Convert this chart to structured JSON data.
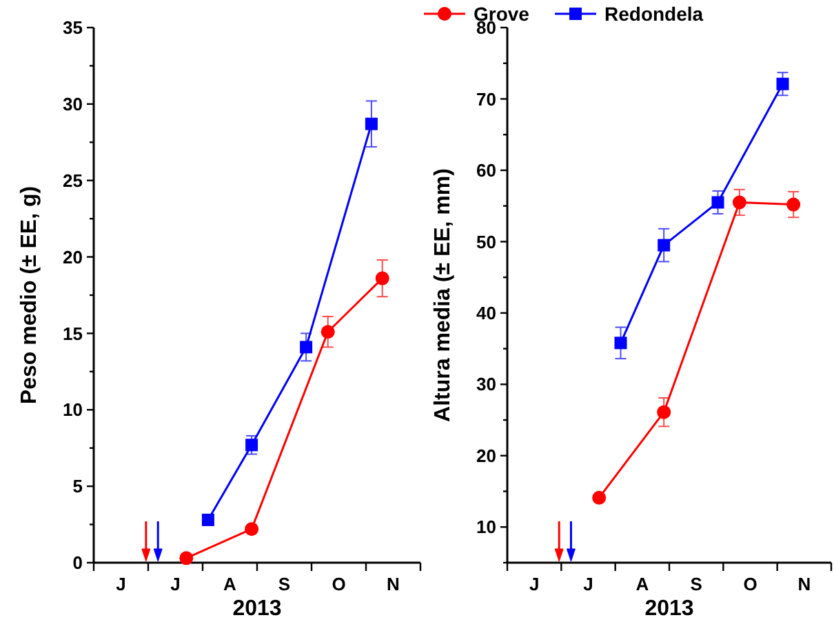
{
  "chart_data": [
    {
      "type": "line",
      "xlabel": "2013",
      "ylabel": "Peso medio (± EE, g)",
      "legend": "top",
      "categories": [
        null,
        null,
        "J",
        null,
        null,
        null,
        null,
        "J",
        null,
        null,
        null,
        null,
        "A",
        null,
        null,
        null,
        null,
        "S",
        null,
        null,
        null,
        null,
        "O",
        null,
        null,
        null,
        null,
        "N",
        null,
        null
      ],
      "ylim": [
        0,
        35
      ],
      "yticks": [
        0,
        {
          "value": 2.5,
          "label": null
        },
        5,
        {
          "value": 7.5,
          "label": null
        },
        10,
        {
          "value": 12.5,
          "label": null
        },
        15,
        {
          "value": 17.5,
          "label": null
        },
        20,
        {
          "value": 22.5,
          "label": null
        },
        25,
        {
          "value": 27.5,
          "label": null
        },
        30,
        {
          "value": 32.5,
          "label": null
        },
        35
      ],
      "series": [
        {
          "name": "Grove",
          "color": "#ff0000",
          "marker": "circle",
          "values": [
            null,
            null,
            null,
            null,
            null,
            null,
            null,
            null,
            0.3,
            null,
            null,
            null,
            null,
            null,
            2.2,
            null,
            null,
            null,
            null,
            null,
            null,
            15.1,
            null,
            null,
            null,
            null,
            18.6,
            null,
            null,
            null
          ],
          "errors": [
            null,
            null,
            null,
            null,
            null,
            null,
            null,
            null,
            null,
            null,
            null,
            null,
            null,
            null,
            null,
            null,
            null,
            null,
            null,
            null,
            null,
            1.0,
            null,
            null,
            null,
            null,
            1.2,
            null,
            null,
            null
          ]
        },
        {
          "name": "Redondela",
          "color": "#0000ff",
          "marker": "square",
          "values": [
            null,
            null,
            null,
            null,
            null,
            null,
            null,
            null,
            null,
            null,
            2.8,
            null,
            null,
            null,
            7.7,
            null,
            null,
            null,
            null,
            14.1,
            null,
            null,
            null,
            null,
            null,
            28.7,
            null,
            null,
            null,
            null
          ],
          "errors": [
            null,
            null,
            null,
            null,
            null,
            null,
            null,
            null,
            null,
            null,
            null,
            null,
            null,
            null,
            0.6,
            null,
            null,
            null,
            null,
            0.9,
            null,
            null,
            null,
            null,
            null,
            1.5,
            null,
            null,
            null,
            null
          ]
        }
      ]
    },
    {
      "type": "line",
      "xlabel": "2013",
      "ylabel": "Altura media (± EE, mm)",
      "categories": [
        null,
        null,
        "J",
        null,
        null,
        null,
        null,
        "J",
        null,
        null,
        null,
        null,
        "A",
        null,
        null,
        null,
        null,
        "S",
        null,
        null,
        null,
        null,
        "O",
        null,
        null,
        null,
        null,
        "N",
        null,
        null
      ],
      "ylim": [
        5,
        80
      ],
      "yticks": [
        {
          "value": 5,
          "label": null
        },
        10,
        {
          "value": 15,
          "label": null
        },
        20,
        {
          "value": 25,
          "label": null
        },
        30,
        {
          "value": 35,
          "label": null
        },
        40,
        {
          "value": 45,
          "label": null
        },
        50,
        {
          "value": 55,
          "label": null
        },
        60,
        {
          "value": 65,
          "label": null
        },
        70,
        {
          "value": 75,
          "label": null
        },
        80
      ],
      "series": [
        {
          "color": "#ff0000",
          "marker": "circle",
          "values": [
            null,
            null,
            null,
            null,
            null,
            null,
            null,
            null,
            14.1,
            null,
            null,
            null,
            null,
            null,
            26.1,
            null,
            null,
            null,
            null,
            null,
            null,
            55.5,
            null,
            null,
            null,
            null,
            55.2,
            null,
            null,
            null
          ],
          "errors": [
            null,
            null,
            null,
            null,
            null,
            null,
            null,
            null,
            null,
            null,
            null,
            null,
            null,
            null,
            2.0,
            null,
            null,
            null,
            null,
            null,
            null,
            1.8,
            null,
            null,
            null,
            null,
            1.8,
            null,
            null,
            null
          ]
        },
        {
          "color": "#0000ff",
          "marker": "square",
          "values": [
            null,
            null,
            null,
            null,
            null,
            null,
            null,
            null,
            null,
            null,
            35.8,
            null,
            null,
            null,
            49.5,
            null,
            null,
            null,
            null,
            55.5,
            null,
            null,
            null,
            null,
            null,
            72.1,
            null,
            null,
            null,
            null
          ],
          "errors": [
            null,
            null,
            null,
            null,
            null,
            null,
            null,
            null,
            null,
            null,
            2.2,
            null,
            null,
            null,
            2.3,
            null,
            null,
            null,
            null,
            1.6,
            null,
            null,
            null,
            null,
            null,
            1.6,
            null,
            null,
            null,
            null
          ]
        }
      ]
    }
  ]
}
